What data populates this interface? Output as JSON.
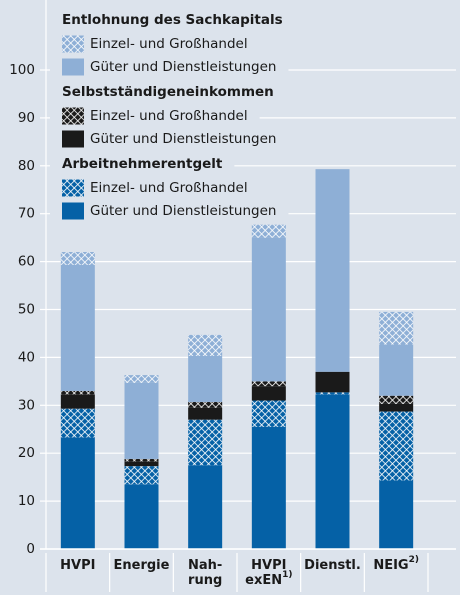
{
  "chart_data": {
    "type": "stacked_bar",
    "categories": [
      "HVPI",
      "Energie",
      "Nah-\nrung",
      "HVPI\nexEN",
      "Dienstl.",
      "NEIG"
    ],
    "category_notes": [
      null,
      null,
      null,
      "1)",
      null,
      "2)"
    ],
    "series": [
      {
        "group": "Arbeitnehmerentgelt",
        "name": "Güter und Dienstleistungen",
        "color": "#0561a6",
        "hatched": false,
        "values": [
          23.3,
          13.5,
          17.5,
          25.5,
          32.3,
          14.3
        ]
      },
      {
        "group": "Arbeitnehmerentgelt",
        "name": "Einzel- und Großhandel",
        "color": "#0561a6",
        "hatched": true,
        "values": [
          6,
          3.8,
          9.5,
          5.5,
          0.4,
          14.4
        ]
      },
      {
        "group": "Selbstständigeneinkommen",
        "name": "Güter und Dienstleistungen",
        "color": "#1a1a1a",
        "hatched": false,
        "values": [
          3,
          1,
          2.5,
          3,
          4.3,
          1.6
        ]
      },
      {
        "group": "Selbstständigeneinkommen",
        "name": "Einzel- und Großhandel",
        "color": "#1a1a1a",
        "hatched": true,
        "values": [
          0.7,
          0.5,
          1.2,
          1,
          0,
          1.7
        ]
      },
      {
        "group": "Entlohnung des Sachkapitals",
        "name": "Güter und Dienstleistungen",
        "color": "#8eafd6",
        "hatched": false,
        "values": [
          26.3,
          15.9,
          9.6,
          30,
          42.3,
          10.7
        ]
      },
      {
        "group": "Entlohnung des Sachkapitals",
        "name": "Einzel- und Großhandel",
        "color": "#8eafd6",
        "hatched": true,
        "values": [
          2.7,
          1.6,
          4.4,
          2.7,
          0,
          6.8
        ]
      }
    ],
    "ylim": [
      0,
      100
    ],
    "yticks": [
      0,
      10,
      20,
      30,
      40,
      50,
      60,
      70,
      80,
      90,
      100
    ],
    "grid": true
  }
}
